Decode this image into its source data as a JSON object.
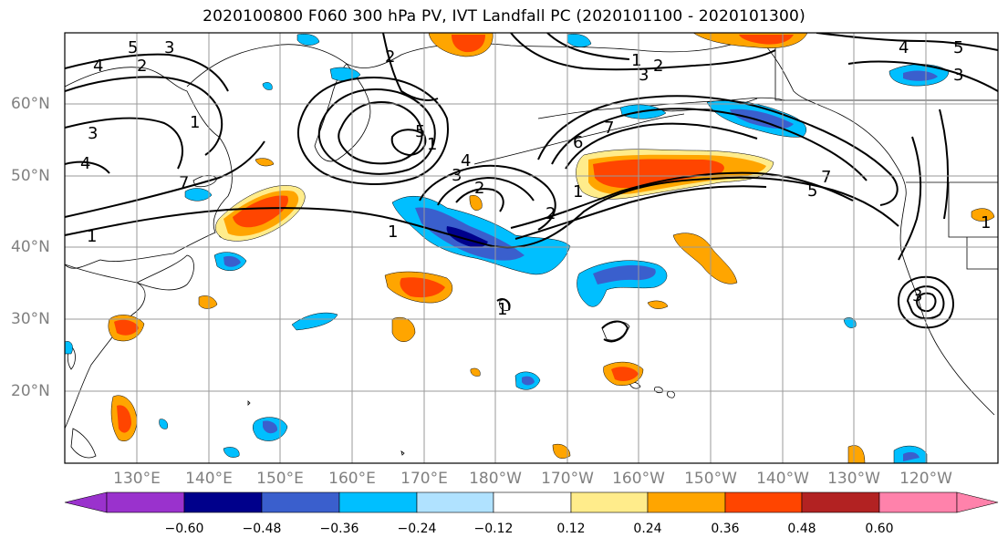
{
  "title": "2020100800 F060 300 hPa PV, IVT Landfall PC (2020101100 - 2020101300)",
  "lat_labels": [
    "60°N",
    "50°N",
    "40°N",
    "30°N",
    "20°N"
  ],
  "lon_labels": [
    "130°E",
    "140°E",
    "150°E",
    "160°E",
    "170°E",
    "180°W",
    "170°W",
    "160°W",
    "150°W",
    "140°W",
    "130°W",
    "120°W"
  ],
  "colorbar": {
    "ticks": [
      "−0.60",
      "−0.48",
      "−0.36",
      "−0.24",
      "−0.12",
      "0.12",
      "0.24",
      "0.36",
      "0.48",
      "0.60"
    ],
    "colors": [
      "#9a32cd",
      "#00008b",
      "#3a5fcd",
      "#00bfff",
      "#b0e2ff",
      "#ffffff",
      "#ffec8b",
      "#ffa500",
      "#ff4500",
      "#b22222",
      "#ff82ab"
    ]
  },
  "contour_labels": [
    "5",
    "4",
    "2",
    "3",
    "2",
    "1",
    "3",
    "4",
    "1",
    "7",
    "1",
    "1",
    "5",
    "3",
    "4",
    "2",
    "1",
    "2",
    "1",
    "6",
    "7",
    "2",
    "3",
    "4",
    "5",
    "3",
    "7",
    "5",
    "1",
    "3",
    "1"
  ],
  "fill_colors": {
    "dark_blue": "#00008b",
    "blue": "#3a5fcd",
    "cyan": "#00bfff",
    "light_blue": "#b0e2ff",
    "yellow": "#ffec8b",
    "orange": "#ffa500",
    "red_orange": "#ff4500"
  }
}
